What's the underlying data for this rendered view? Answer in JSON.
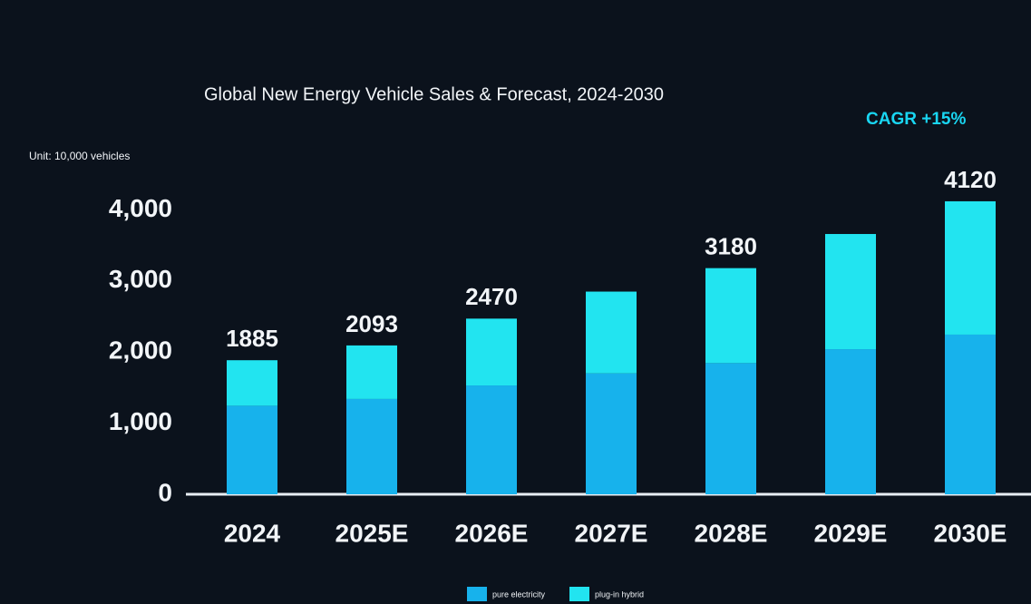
{
  "chart_data": {
    "type": "stacked_bar",
    "title": "Global New Energy Vehicle Sales & Forecast, 2024-2030",
    "subtitle": "CAGR +15%",
    "y_label": "Unit: 10,000 vehicles",
    "categories": [
      "2024",
      "2025E",
      "2026E",
      "2027E",
      "2028E",
      "2029E",
      "2030E"
    ],
    "series": [
      {
        "name": "pure electricity",
        "color": "#17b2ec",
        "values": [
          1245,
          1340,
          1530,
          1700,
          1845,
          2040,
          2245
        ]
      },
      {
        "name": "plug-in hybrid",
        "color": "#22e4f0",
        "values": [
          640,
          753,
          940,
          1150,
          1335,
          1620,
          1875
        ]
      }
    ],
    "totals": [
      1885,
      2093,
      2470,
      null,
      3180,
      null,
      4120
    ],
    "ylim": [
      0,
      4400
    ],
    "yticks": [
      0,
      {
        "value": 1000,
        "label": "1,000"
      },
      {
        "value": 2000,
        "label": "2,000"
      },
      {
        "value": 3000,
        "label": "3,000"
      },
      {
        "value": 4000,
        "label": "4,000"
      }
    ],
    "grid": false,
    "legend": "bottom"
  }
}
